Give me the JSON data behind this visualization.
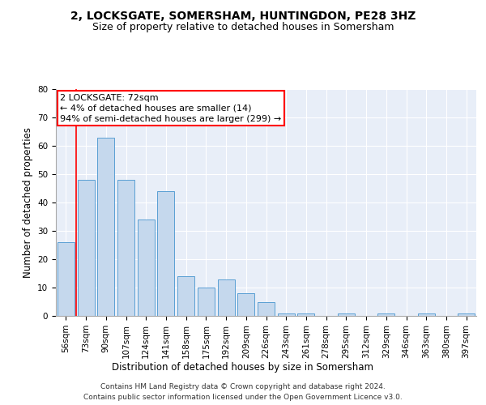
{
  "title": "2, LOCKSGATE, SOMERSHAM, HUNTINGDON, PE28 3HZ",
  "subtitle": "Size of property relative to detached houses in Somersham",
  "xlabel": "Distribution of detached houses by size in Somersham",
  "ylabel": "Number of detached properties",
  "bar_color": "#c5d8ed",
  "bar_edge_color": "#5a9fd4",
  "bar_edge_width": 0.7,
  "background_color": "#e8eef8",
  "grid_color": "#ffffff",
  "categories": [
    "56sqm",
    "73sqm",
    "90sqm",
    "107sqm",
    "124sqm",
    "141sqm",
    "158sqm",
    "175sqm",
    "192sqm",
    "209sqm",
    "226sqm",
    "243sqm",
    "261sqm",
    "278sqm",
    "295sqm",
    "312sqm",
    "329sqm",
    "346sqm",
    "363sqm",
    "380sqm",
    "397sqm"
  ],
  "values": [
    26,
    48,
    63,
    48,
    34,
    44,
    14,
    10,
    13,
    8,
    5,
    1,
    1,
    0,
    1,
    0,
    1,
    0,
    1,
    0,
    1
  ],
  "annotation_text": "2 LOCKSGATE: 72sqm\n← 4% of detached houses are smaller (14)\n94% of semi-detached houses are larger (299) →",
  "annotation_fontsize": 8,
  "annotation_box_color": "white",
  "annotation_edge_color": "red",
  "vline_color": "red",
  "vline_x": 0.5,
  "ylim": [
    0,
    80
  ],
  "yticks": [
    0,
    10,
    20,
    30,
    40,
    50,
    60,
    70,
    80
  ],
  "footer": "Contains HM Land Registry data © Crown copyright and database right 2024.\nContains public sector information licensed under the Open Government Licence v3.0.",
  "title_fontsize": 10,
  "subtitle_fontsize": 9,
  "xlabel_fontsize": 8.5,
  "ylabel_fontsize": 8.5,
  "footer_fontsize": 6.5,
  "tick_fontsize": 7.5
}
